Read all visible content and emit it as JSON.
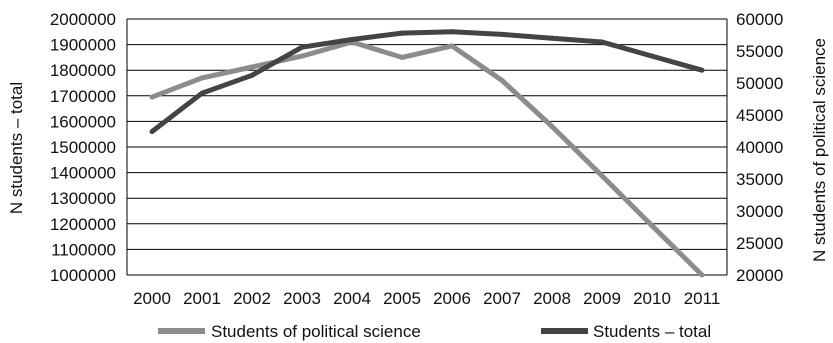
{
  "chart_data": {
    "type": "line",
    "categories": [
      "2000",
      "2001",
      "2002",
      "2003",
      "2004",
      "2005",
      "2006",
      "2007",
      "2008",
      "2009",
      "2010",
      "2011"
    ],
    "ylabel_left": "N students – total",
    "ylabel_right": "N students of political science",
    "ylim_left": [
      1000000,
      2000000
    ],
    "ylim_right": [
      20000,
      60000
    ],
    "yticks_left": [
      "1000000",
      "1100000",
      "1200000",
      "1300000",
      "1400000",
      "1500000",
      "1600000",
      "1700000",
      "1800000",
      "1900000",
      "2000000"
    ],
    "yticks_right": [
      "20000",
      "25000",
      "30000",
      "35000",
      "40000",
      "45000",
      "50000",
      "55000",
      "60000"
    ],
    "grid": true,
    "legend_position": "bottom",
    "series": [
      {
        "name": "Students of political science",
        "axis": "right",
        "color": "#8c8c8c",
        "values": [
          47800,
          50800,
          52500,
          54200,
          56400,
          54000,
          55800,
          50400,
          43200,
          35500,
          27700,
          20000
        ]
      },
      {
        "name": "Students – total",
        "axis": "left",
        "color": "#444444",
        "values": [
          1560000,
          1710000,
          1780000,
          1890000,
          1920000,
          1945000,
          1950000,
          1940000,
          1925000,
          1910000,
          1855000,
          1800000
        ]
      }
    ]
  }
}
